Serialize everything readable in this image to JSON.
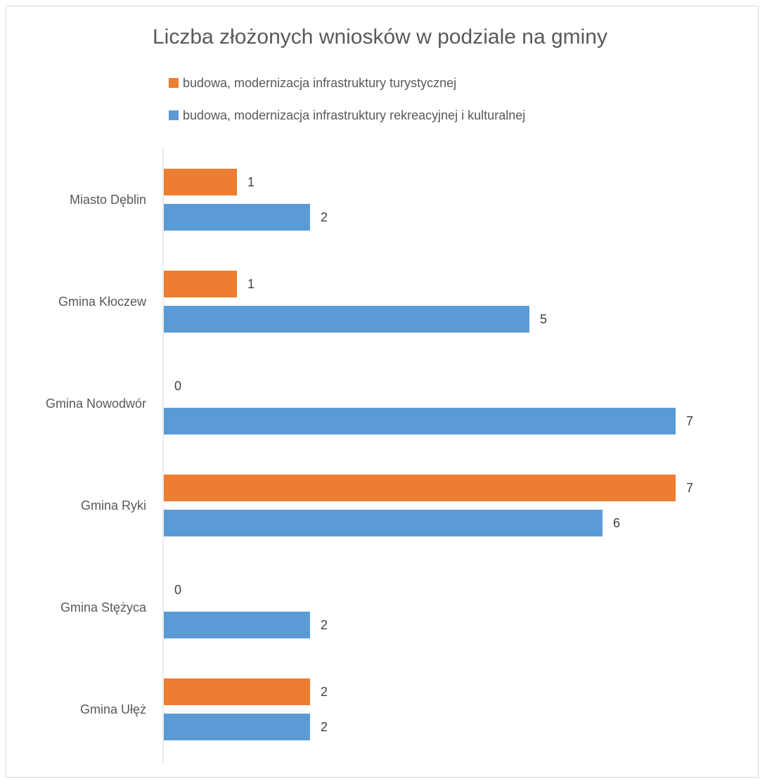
{
  "chart_data": {
    "type": "bar",
    "orientation": "horizontal",
    "title": "Liczba złożonych wniosków w podziale na gminy",
    "categories": [
      "Miasto Dęblin",
      "Gmina Kłoczew",
      "Gmina Nowodwór",
      "Gmina Ryki",
      "Gmina Stężyca",
      "Gmina Ułęż"
    ],
    "series": [
      {
        "name": "budowa, modernizacja infrastruktury turystycznej",
        "color": "#ed7d31",
        "values": [
          1,
          1,
          0,
          7,
          0,
          2
        ]
      },
      {
        "name": "budowa, modernizacja infrastruktury rekreacyjnej i kulturalnej",
        "color": "#5b9bd5",
        "values": [
          2,
          5,
          7,
          6,
          2,
          2
        ]
      }
    ],
    "xlim": [
      0,
      7
    ],
    "grid": false,
    "legend_position": "top"
  }
}
